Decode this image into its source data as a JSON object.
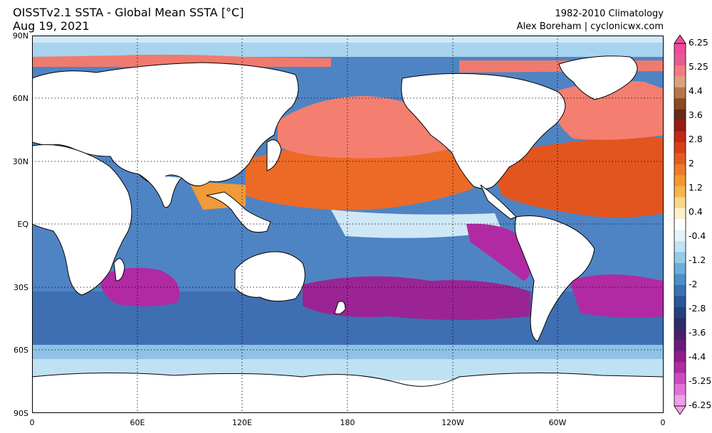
{
  "header": {
    "title": "OISSTv2.1 SSTA - Global Mean SSTA [°C]",
    "date": "Aug 19, 2021",
    "climatology": "1982-2010 Climatology",
    "credit": "Alex Boreham | cyclonicwx.com"
  },
  "axes": {
    "lat_labels": [
      "90N",
      "60N",
      "30N",
      "EQ",
      "30S",
      "60S",
      "90S"
    ],
    "lon_labels": [
      "0",
      "60E",
      "120E",
      "180",
      "120W",
      "60W",
      "0"
    ]
  },
  "colorbar": {
    "labels": [
      "6.25",
      "5.25",
      "4.4",
      "3.6",
      "2.8",
      "2",
      "1.2",
      "0.4",
      "-0.4",
      "-1.2",
      "-2",
      "-2.8",
      "-3.6",
      "-4.4",
      "-5.25",
      "-6.25"
    ],
    "colors": [
      "#f04a9c",
      "#e85a92",
      "#f27a82",
      "#d9a27e",
      "#b8754a",
      "#8a4a22",
      "#6a2a1a",
      "#991c14",
      "#c02a18",
      "#d8401a",
      "#e35c20",
      "#ee7a2a",
      "#f4982e",
      "#f7b44a",
      "#fbd68a",
      "#fff0cc",
      "#ffffff",
      "#e4f3fa",
      "#bfe3f3",
      "#93cbe9",
      "#6aaeda",
      "#4b8fc9",
      "#3672b5",
      "#2a569c",
      "#25407e",
      "#2e2c66",
      "#4a1f6a",
      "#6c1a7a",
      "#8f1c8c",
      "#b22aa4",
      "#cc49c2",
      "#e071da",
      "#f09fe8"
    ]
  },
  "map": {
    "projection": "equirectangular",
    "lon_range": [
      0,
      360
    ],
    "lat_range": [
      -90,
      90
    ],
    "anomaly_units": "°C"
  }
}
